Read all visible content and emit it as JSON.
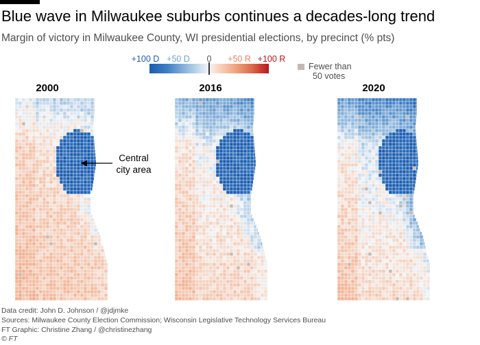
{
  "header": {
    "title": "Blue wave in Milwaukee suburbs continues a decades-long trend",
    "subtitle": "Margin of victory in Milwaukee County, WI presidential elections, by precinct (% pts)"
  },
  "legend": {
    "labels": [
      {
        "text": "+100 D",
        "color": "#1f5ba8"
      },
      {
        "text": "+50 D",
        "color": "#6fa0d3"
      },
      {
        "text": "0",
        "color": "#555555"
      },
      {
        "text": "+50 R",
        "color": "#e8855d"
      },
      {
        "text": "+100 R",
        "color": "#b8161d"
      }
    ],
    "gradient_colors": [
      "#1a5cb0",
      "#3f7fc4",
      "#8db6dc",
      "#d7e6f3",
      "#f6f6f6",
      "#f9dccd",
      "#f0a47e",
      "#d96a4a",
      "#b8161d"
    ],
    "no_data_line1": "Fewer than",
    "no_data_line2": "50 votes",
    "no_data_color": "#c4b9b1"
  },
  "maps": [
    {
      "year": "2000",
      "dem_strength": 0.55
    },
    {
      "year": "2016",
      "dem_strength": 0.85
    },
    {
      "year": "2020",
      "dem_strength": 1.0
    }
  ],
  "annotation": {
    "line1": "Central",
    "line2": "city area"
  },
  "footer": {
    "credit": "Data credit: John D. Johnson / @jdjmke",
    "sources": "Sources: Milwaukee County Election Commission; Wisconsin Legislative Technology Services Bureau",
    "graphic": "FT Graphic: Christine Zhang / @christinezhang",
    "copyright": "© FT"
  }
}
